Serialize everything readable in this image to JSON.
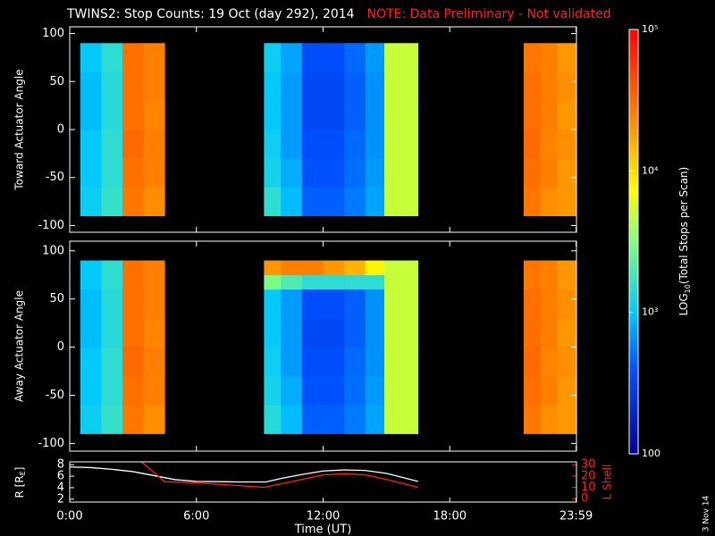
{
  "title": "TWINS2: Stop Counts: 19 Oct (day 292), 2014",
  "note": "NOTE: Data Preliminary - Not validated",
  "stamp": "3 Nov 14",
  "colorbar": {
    "label_prefix": "LOG",
    "label_sub": "10",
    "label_suffix": "(Total Stops per Scan)",
    "lim": [
      100,
      100000
    ],
    "log": true,
    "ticks": [
      {
        "value": 100000,
        "label": "10⁵"
      },
      {
        "value": 10000,
        "label": "10⁴"
      },
      {
        "value": 1000,
        "label": "10³"
      },
      100
    ]
  },
  "chart_data": [
    {
      "type": "heatmap",
      "ylabel": "Toward Actuator Angle",
      "xlim": [
        0,
        24
      ],
      "ylim": [
        -107,
        107
      ],
      "yticks": [
        -100,
        -50,
        0,
        50,
        100
      ],
      "x_edges": [
        0.5,
        1.5,
        2.5,
        3.5,
        4.5,
        9.2,
        10,
        11,
        12,
        13,
        14,
        14.9,
        15.7,
        16.5,
        21.5,
        22.3,
        23.1,
        24
      ],
      "y_edges": [
        -90,
        -60,
        -30,
        0,
        30,
        60,
        90
      ],
      "values": [
        [
          1100,
          1600,
          28000,
          22000,
          null,
          1500,
          900,
          450,
          450,
          550,
          750,
          5000,
          5000,
          null,
          28000,
          22000,
          20000
        ],
        [
          1000,
          1500,
          30000,
          25000,
          null,
          1200,
          800,
          400,
          400,
          500,
          700,
          5000,
          5000,
          null,
          30000,
          25000,
          20000
        ],
        [
          1000,
          1500,
          32000,
          26000,
          null,
          1100,
          700,
          380,
          380,
          480,
          650,
          5000,
          5000,
          null,
          32000,
          24000,
          22000
        ],
        [
          900,
          1400,
          30000,
          24000,
          null,
          1000,
          700,
          350,
          350,
          450,
          650,
          5000,
          5000,
          null,
          30000,
          26000,
          20000
        ],
        [
          900,
          1400,
          30000,
          25000,
          null,
          1000,
          700,
          350,
          350,
          450,
          650,
          5000,
          5000,
          null,
          30000,
          25000,
          22000
        ],
        [
          1000,
          1500,
          30000,
          25000,
          null,
          1100,
          750,
          380,
          380,
          480,
          700,
          5000,
          5000,
          null,
          28000,
          25000,
          20000
        ]
      ]
    },
    {
      "type": "heatmap",
      "ylabel": "Away Actuator Angle",
      "xlim": [
        0,
        24
      ],
      "ylim": [
        -108,
        110
      ],
      "yticks": [
        -100,
        -50,
        0,
        50,
        100
      ],
      "x_edges": [
        0.5,
        1.5,
        2.5,
        3.5,
        4.5,
        9.2,
        10,
        11,
        12,
        13,
        14,
        14.9,
        15.7,
        16.5,
        21.5,
        22.3,
        23.1,
        24
      ],
      "y_edges": [
        -90,
        -60,
        -30,
        0,
        30,
        60,
        75,
        90
      ],
      "values": [
        [
          1100,
          1600,
          28000,
          22000,
          null,
          1400,
          900,
          450,
          450,
          550,
          750,
          5000,
          5000,
          null,
          28000,
          22000,
          20000
        ],
        [
          1000,
          1500,
          30000,
          25000,
          null,
          1200,
          800,
          400,
          400,
          500,
          700,
          5000,
          5000,
          null,
          30000,
          25000,
          20000
        ],
        [
          1000,
          1500,
          32000,
          26000,
          null,
          1100,
          700,
          380,
          380,
          480,
          650,
          5000,
          5000,
          null,
          32000,
          24000,
          22000
        ],
        [
          900,
          1400,
          30000,
          24000,
          null,
          1000,
          700,
          350,
          350,
          450,
          650,
          5000,
          5000,
          null,
          30000,
          26000,
          20000
        ],
        [
          900,
          1400,
          30000,
          25000,
          null,
          1000,
          700,
          380,
          380,
          450,
          650,
          5000,
          5000,
          null,
          30000,
          25000,
          22000
        ],
        [
          1000,
          1500,
          30000,
          25000,
          null,
          3000,
          2000,
          1500,
          1500,
          1500,
          1500,
          5000,
          5000,
          null,
          28000,
          25000,
          20000
        ],
        [
          1000,
          1500,
          30000,
          25000,
          null,
          20000,
          25000,
          25000,
          20000,
          15000,
          8000,
          5000,
          5000,
          null,
          28000,
          25000,
          20000
        ]
      ]
    },
    {
      "type": "line",
      "xlabel": "Time (UT)",
      "ylabel_main": "R [R",
      "ylabel_sub": "E",
      "ylabel_end": "]",
      "y2label": "L Shell",
      "xlim": [
        0,
        24
      ],
      "ylim": [
        1.5,
        8.5
      ],
      "yticks": [
        2,
        4,
        6,
        8
      ],
      "y2lim": [
        -3,
        32.5
      ],
      "y2ticks": [
        0,
        10,
        20,
        30
      ],
      "xticks": [
        {
          "value": 0,
          "label": "0:00"
        },
        {
          "value": 6,
          "label": "6:00"
        },
        {
          "value": 12,
          "label": "12:00"
        },
        {
          "value": 18,
          "label": "18:00"
        },
        {
          "value": 23.983,
          "label": "23:59"
        }
      ],
      "series": [
        {
          "color": "#ffffff",
          "x": [
            0,
            1,
            2,
            3,
            4,
            5,
            6,
            8,
            9.3,
            10,
            11,
            12,
            13,
            14,
            15,
            16.5
          ],
          "values": [
            7.6,
            7.5,
            7.2,
            6.8,
            6.1,
            5.4,
            5.1,
            5.0,
            5.0,
            5.6,
            6.3,
            6.9,
            7.1,
            7.0,
            6.5,
            5.1
          ]
        },
        {
          "color": "#ff2020",
          "axis": "y2",
          "x": [
            3.4,
            4.5,
            6,
            9.2,
            10,
            11,
            12,
            13,
            14,
            15,
            16.5
          ],
          "values": [
            32.5,
            15,
            14,
            10,
            13,
            17,
            21,
            22,
            21,
            17,
            10
          ]
        }
      ]
    }
  ]
}
